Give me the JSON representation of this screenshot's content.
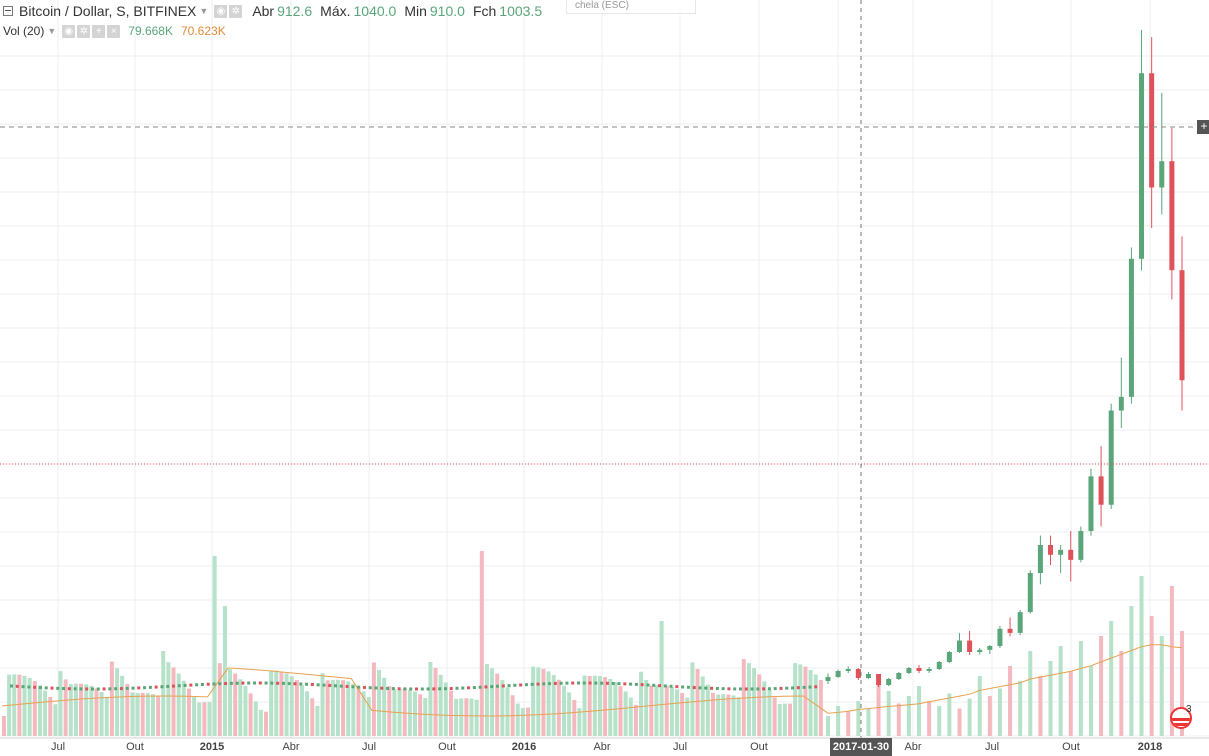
{
  "header": {
    "symbol": "Bitcoin / Dollar, S, BITFINEX",
    "open_label": "Abr",
    "open_value": "912.6",
    "high_label": "Máx.",
    "high_value": "1040.0",
    "low_label": "Min",
    "low_value": "910.0",
    "close_label": "Fch",
    "close_value": "1003.5",
    "esc_hint": "chela (ESC)"
  },
  "volume": {
    "label": "Vol (20)",
    "value": "79.668K",
    "ma_value": "70.623K"
  },
  "crosshair": {
    "date_label": "2017-01-30"
  },
  "badge": {
    "count": "3"
  },
  "colors": {
    "up": "#5aa67a",
    "down": "#e0525a",
    "vol_up": "#b6e2c9",
    "vol_down": "#f4b9be",
    "ma": "#e8a150",
    "grid": "#eceff2"
  },
  "icons": [
    "collapse-icon",
    "caret-down-icon",
    "eye-icon",
    "gear-icon",
    "plus-icon",
    "close-icon"
  ],
  "chart_data": {
    "type": "candlestick",
    "x_ticks": [
      "Jul",
      "Out",
      "2015",
      "Abr",
      "Jul",
      "Out",
      "2016",
      "Abr",
      "Jul",
      "Out",
      "2017",
      "Abr",
      "Jul",
      "Out",
      "2018"
    ],
    "grid": true,
    "candles": [
      [
        380,
        530,
        320,
        460
      ],
      [
        460,
        610,
        440,
        580
      ],
      [
        580,
        670,
        540,
        620
      ],
      [
        620,
        640,
        400,
        440
      ],
      [
        440,
        560,
        420,
        520
      ],
      [
        520,
        520,
        260,
        300
      ],
      [
        300,
        440,
        280,
        420
      ],
      [
        420,
        560,
        400,
        540
      ],
      [
        540,
        660,
        520,
        640
      ],
      [
        640,
        700,
        540,
        580
      ],
      [
        580,
        660,
        540,
        620
      ],
      [
        620,
        780,
        600,
        760
      ],
      [
        760,
        980,
        740,
        960
      ],
      [
        960,
        1180,
        940,
        1120
      ],
      [
        1120,
        1200,
        900,
        960
      ],
      [
        960,
        1040,
        910,
        1003.5
      ],
      [
        1003.5,
        1100,
        920,
        1080
      ],
      [
        1080,
        1250,
        1040,
        1220
      ],
      [
        1220,
        1350,
        1150,
        1180
      ],
      [
        1180,
        1450,
        1160,
        1420
      ],
      [
        1420,
        2100,
        1400,
        2050
      ],
      [
        2050,
        2800,
        1850,
        2600
      ],
      [
        2600,
        2800,
        2200,
        2400
      ],
      [
        2400,
        2600,
        2050,
        2500
      ],
      [
        2500,
        2900,
        1900,
        2300
      ],
      [
        2300,
        3000,
        2250,
        2900
      ],
      [
        2900,
        4400,
        2800,
        4200
      ],
      [
        4200,
        5000,
        3000,
        3500
      ],
      [
        3500,
        6200,
        3400,
        6000
      ],
      [
        6000,
        7600,
        5500,
        6400
      ],
      [
        6400,
        11300,
        6200,
        10900
      ],
      [
        10900,
        19800,
        10500,
        18000
      ],
      [
        18000,
        19500,
        12000,
        13500
      ],
      [
        13500,
        17200,
        12500,
        14500
      ],
      [
        14500,
        15800,
        9500,
        10500
      ],
      [
        10500,
        11700,
        6000,
        6900
      ]
    ],
    "volumes": [
      [
        40,
        1
      ],
      [
        60,
        1
      ],
      [
        50,
        0
      ],
      [
        70,
        1
      ],
      [
        55,
        1
      ],
      [
        110,
        0
      ],
      [
        90,
        1
      ],
      [
        65,
        0
      ],
      [
        80,
        1
      ],
      [
        100,
        1
      ],
      [
        70,
        0
      ],
      [
        60,
        1
      ],
      [
        85,
        1
      ],
      [
        55,
        0
      ],
      [
        75,
        1
      ],
      [
        120,
        1
      ],
      [
        80,
        0
      ],
      [
        95,
        1
      ],
      [
        140,
        0
      ],
      [
        110,
        1
      ],
      [
        170,
        1
      ],
      [
        120,
        0
      ],
      [
        150,
        1
      ],
      [
        180,
        1
      ],
      [
        130,
        0
      ],
      [
        190,
        1
      ],
      [
        140,
        1
      ],
      [
        200,
        0
      ],
      [
        230,
        1
      ],
      [
        170,
        0
      ],
      [
        260,
        1
      ],
      [
        320,
        1
      ],
      [
        240,
        0
      ],
      [
        200,
        1
      ],
      [
        300,
        0
      ],
      [
        210,
        0
      ]
    ],
    "volume_ma": [
      60,
      62,
      65,
      70,
      72,
      75,
      78,
      80,
      82,
      85,
      90,
      95,
      100,
      105,
      110,
      120,
      125,
      130,
      135,
      140,
      150,
      155,
      160,
      165,
      170,
      178,
      185,
      195,
      205,
      215,
      225,
      235,
      240,
      240,
      235,
      232
    ]
  }
}
